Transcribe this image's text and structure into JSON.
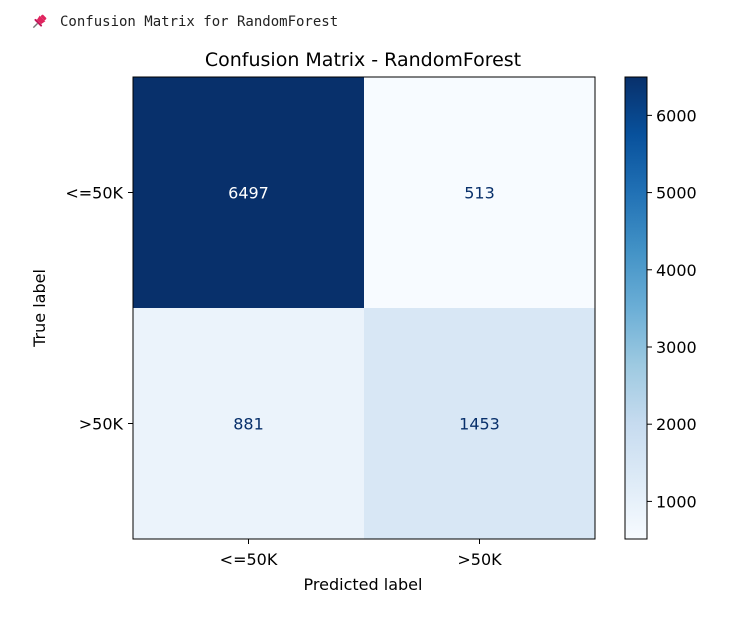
{
  "header": {
    "icon": "pushpin-icon",
    "text": "Confusion Matrix for RandomForest"
  },
  "chart_data": {
    "type": "heatmap",
    "title": "Confusion Matrix - RandomForest",
    "xlabel": "Predicted label",
    "ylabel": "True label",
    "x_categories": [
      "<=50K",
      ">50K"
    ],
    "y_categories": [
      "<=50K",
      ">50K"
    ],
    "values": [
      [
        6497,
        513
      ],
      [
        881,
        1453
      ]
    ],
    "colormap": "Blues",
    "colorbar": {
      "ticks": [
        1000,
        2000,
        3000,
        4000,
        5000,
        6000
      ],
      "range": [
        513,
        6497
      ]
    },
    "grid": false
  }
}
